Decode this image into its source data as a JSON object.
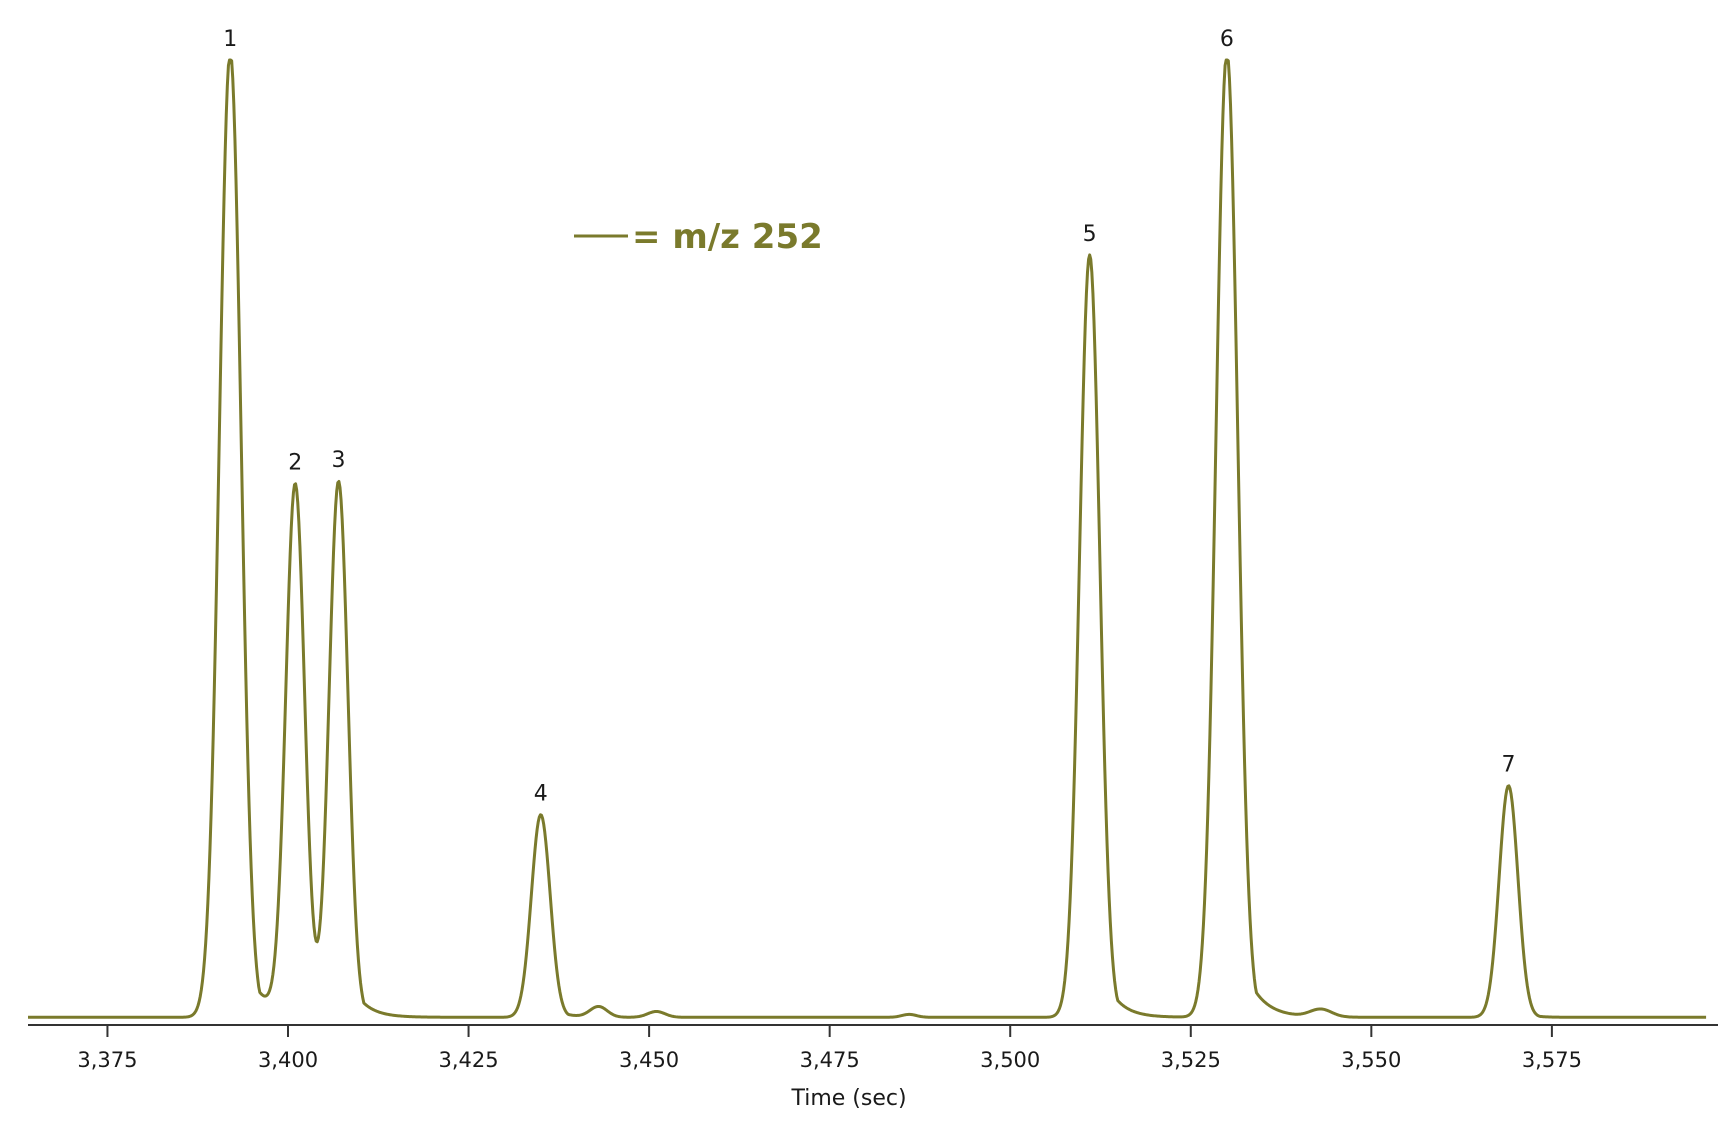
{
  "chart_data": {
    "type": "line",
    "title": "",
    "xlabel": "Time (sec)",
    "ylabel": "",
    "xlim": [
      3364,
      3598
    ],
    "ylim": [
      0,
      100
    ],
    "x_ticks": [
      3375,
      3400,
      3425,
      3450,
      3475,
      3500,
      3525,
      3550,
      3575
    ],
    "x_tick_labels": [
      "3,375",
      "3,400",
      "3,425",
      "3,450",
      "3,475",
      "3,500",
      "3,525",
      "3,550",
      "3,575"
    ],
    "grid": false,
    "legend": {
      "placement": "top-center",
      "text": "= m/z 252"
    },
    "colors": {
      "series": "#7a7a2c",
      "axis": "#333333",
      "text": "#1a1a1a"
    },
    "series": [
      {
        "name": "m/z 252",
        "baseline": 0.8,
        "peaks": [
          {
            "label": "1",
            "x": 3392,
            "height": 100,
            "sigma": 1.5,
            "tail": 3.2
          },
          {
            "label": "2",
            "x": 3401,
            "height": 55,
            "sigma": 1.3,
            "tail": 1.5
          },
          {
            "label": "3",
            "x": 3407,
            "height": 55.5,
            "sigma": 1.3,
            "tail": 2.8
          },
          {
            "label": "4",
            "x": 3435,
            "height": 21,
            "sigma": 1.3,
            "tail": 2.2
          },
          {
            "label": "5",
            "x": 3511,
            "height": 79,
            "sigma": 1.4,
            "tail": 2.8
          },
          {
            "label": "6",
            "x": 3530,
            "height": 100,
            "sigma": 1.5,
            "tail": 3.2
          },
          {
            "label": "7",
            "x": 3569,
            "height": 24,
            "sigma": 1.3,
            "tail": 1.6
          }
        ],
        "minor_bumps": [
          {
            "x": 3443,
            "height": 1.1,
            "sigma": 1.2
          },
          {
            "x": 3451,
            "height": 0.6,
            "sigma": 1.2
          },
          {
            "x": 3486,
            "height": 0.3,
            "sigma": 1.0
          },
          {
            "x": 3543,
            "height": 0.8,
            "sigma": 1.5
          }
        ]
      }
    ]
  }
}
